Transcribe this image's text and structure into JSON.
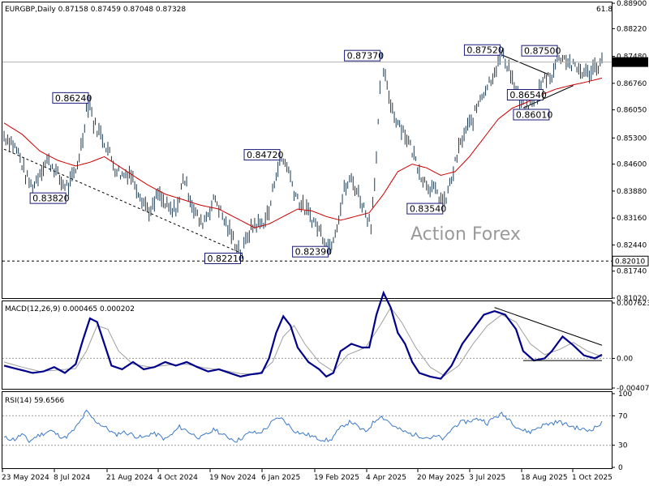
{
  "chart_data": {
    "type": "line",
    "instrument": "EURGBP",
    "timeframe": "Daily",
    "ohlc": [
      "0.87158",
      "0.87459",
      "0.87048",
      "0.87328"
    ],
    "last_price": "0.87328",
    "corner_value": "61.8",
    "watermark": "Action Forex",
    "x_labels": [
      "23 May 2024",
      "8 Jul 2024",
      "21 Aug 2024",
      "4 Oct 2024",
      "19 Nov 2024",
      "6 Jan 2025",
      "19 Feb 2025",
      "4 Apr 2025",
      "20 May 2025",
      "3 Jul 2025",
      "18 Aug 2025",
      "1 Oct 2025"
    ],
    "price_axis": {
      "ticks": [
        "0.88900",
        "0.88220",
        "0.87480",
        "0.86760",
        "0.86050",
        "0.85300",
        "0.84600",
        "0.83880",
        "0.83160",
        "0.82440",
        "0.81740",
        "0.81020"
      ],
      "range": [
        0.8102,
        0.889
      ]
    },
    "support_level": "0.82010",
    "annotations": [
      {
        "label": "0.86240",
        "value": 0.8624
      },
      {
        "label": "0.83820",
        "value": 0.8382
      },
      {
        "label": "0.84720",
        "value": 0.8472
      },
      {
        "label": "0.82210",
        "value": 0.8221
      },
      {
        "label": "0.82390",
        "value": 0.8239
      },
      {
        "label": "0.87370",
        "value": 0.8737
      },
      {
        "label": "0.83540",
        "value": 0.8354
      },
      {
        "label": "0.87520",
        "value": 0.8752
      },
      {
        "label": "0.87500",
        "value": 0.875
      },
      {
        "label": "0.86010",
        "value": 0.8601
      },
      {
        "label": "0.86540",
        "value": 0.8654
      }
    ],
    "price_path": [
      [
        0,
        0.8535
      ],
      [
        4,
        0.852
      ],
      [
        8,
        0.849
      ],
      [
        12,
        0.843
      ],
      [
        16,
        0.8395
      ],
      [
        20,
        0.844
      ],
      [
        24,
        0.847
      ],
      [
        28,
        0.845
      ],
      [
        32,
        0.841
      ],
      [
        36,
        0.84
      ],
      [
        40,
        0.844
      ],
      [
        44,
        0.853
      ],
      [
        46,
        0.861
      ],
      [
        48,
        0.8624
      ],
      [
        50,
        0.857
      ],
      [
        54,
        0.854
      ],
      [
        58,
        0.85
      ],
      [
        62,
        0.845
      ],
      [
        66,
        0.843
      ],
      [
        70,
        0.844
      ],
      [
        74,
        0.84
      ],
      [
        78,
        0.836
      ],
      [
        82,
        0.833
      ],
      [
        86,
        0.838
      ],
      [
        90,
        0.835
      ],
      [
        94,
        0.833
      ],
      [
        98,
        0.836
      ],
      [
        100,
        0.843
      ],
      [
        102,
        0.84
      ],
      [
        106,
        0.834
      ],
      [
        110,
        0.83
      ],
      [
        114,
        0.833
      ],
      [
        118,
        0.837
      ],
      [
        122,
        0.832
      ],
      [
        126,
        0.828
      ],
      [
        130,
        0.824
      ],
      [
        133,
        0.8221
      ],
      [
        136,
        0.827
      ],
      [
        140,
        0.83
      ],
      [
        144,
        0.83
      ],
      [
        148,
        0.833
      ],
      [
        152,
        0.844
      ],
      [
        155,
        0.8472
      ],
      [
        158,
        0.846
      ],
      [
        162,
        0.839
      ],
      [
        166,
        0.835
      ],
      [
        170,
        0.833
      ],
      [
        174,
        0.83
      ],
      [
        178,
        0.827
      ],
      [
        182,
        0.8239
      ],
      [
        186,
        0.83
      ],
      [
        190,
        0.839
      ],
      [
        194,
        0.842
      ],
      [
        198,
        0.838
      ],
      [
        202,
        0.833
      ],
      [
        205,
        0.83
      ],
      [
        208,
        0.848
      ],
      [
        211,
        0.8737
      ],
      [
        214,
        0.866
      ],
      [
        218,
        0.859
      ],
      [
        222,
        0.856
      ],
      [
        226,
        0.852
      ],
      [
        230,
        0.847
      ],
      [
        234,
        0.842
      ],
      [
        238,
        0.84
      ],
      [
        242,
        0.838
      ],
      [
        246,
        0.8354
      ],
      [
        250,
        0.842
      ],
      [
        254,
        0.85
      ],
      [
        258,
        0.855
      ],
      [
        262,
        0.858
      ],
      [
        266,
        0.864
      ],
      [
        270,
        0.867
      ],
      [
        274,
        0.871
      ],
      [
        278,
        0.8752
      ],
      [
        282,
        0.872
      ],
      [
        286,
        0.865
      ],
      [
        290,
        0.861
      ],
      [
        294,
        0.862
      ],
      [
        298,
        0.865
      ],
      [
        302,
        0.869
      ],
      [
        306,
        0.87
      ],
      [
        310,
        0.875
      ],
      [
        314,
        0.874
      ],
      [
        318,
        0.872
      ],
      [
        322,
        0.871
      ],
      [
        326,
        0.87
      ],
      [
        330,
        0.872
      ],
      [
        334,
        0.8733
      ]
    ],
    "ma_path": [
      [
        0,
        0.857
      ],
      [
        10,
        0.854
      ],
      [
        20,
        0.8495
      ],
      [
        30,
        0.847
      ],
      [
        40,
        0.8455
      ],
      [
        48,
        0.8465
      ],
      [
        56,
        0.848
      ],
      [
        64,
        0.8455
      ],
      [
        72,
        0.843
      ],
      [
        80,
        0.8405
      ],
      [
        90,
        0.838
      ],
      [
        100,
        0.8365
      ],
      [
        110,
        0.835
      ],
      [
        120,
        0.834
      ],
      [
        130,
        0.8315
      ],
      [
        140,
        0.829
      ],
      [
        148,
        0.83
      ],
      [
        156,
        0.832
      ],
      [
        164,
        0.834
      ],
      [
        172,
        0.8335
      ],
      [
        180,
        0.832
      ],
      [
        188,
        0.831
      ],
      [
        196,
        0.832
      ],
      [
        204,
        0.833
      ],
      [
        212,
        0.838
      ],
      [
        220,
        0.844
      ],
      [
        228,
        0.846
      ],
      [
        236,
        0.845
      ],
      [
        244,
        0.843
      ],
      [
        252,
        0.844
      ],
      [
        260,
        0.848
      ],
      [
        268,
        0.853
      ],
      [
        276,
        0.858
      ],
      [
        284,
        0.861
      ],
      [
        292,
        0.8625
      ],
      [
        300,
        0.8645
      ],
      [
        308,
        0.866
      ],
      [
        316,
        0.867
      ],
      [
        324,
        0.8678
      ],
      [
        334,
        0.869
      ]
    ],
    "macd": {
      "label": "MACD(12,26,9) 0.000465 0.000202",
      "ticks": [
        "0.007623",
        "0.00",
        "-0.004073"
      ],
      "range": [
        -0.004073,
        0.007623
      ],
      "main": [
        [
          0,
          -0.001
        ],
        [
          8,
          -0.0015
        ],
        [
          16,
          -0.002
        ],
        [
          22,
          -0.0018
        ],
        [
          28,
          -0.0012
        ],
        [
          34,
          -0.002
        ],
        [
          40,
          -0.0008
        ],
        [
          44,
          0.0025
        ],
        [
          48,
          0.0055
        ],
        [
          52,
          0.005
        ],
        [
          56,
          0.002
        ],
        [
          60,
          -0.001
        ],
        [
          66,
          -0.0015
        ],
        [
          72,
          -0.0005
        ],
        [
          78,
          -0.0015
        ],
        [
          84,
          -0.0012
        ],
        [
          90,
          -0.0005
        ],
        [
          96,
          -0.001
        ],
        [
          102,
          -0.0005
        ],
        [
          108,
          -0.0012
        ],
        [
          114,
          -0.0018
        ],
        [
          120,
          -0.0015
        ],
        [
          126,
          -0.002
        ],
        [
          132,
          -0.0025
        ],
        [
          138,
          -0.0022
        ],
        [
          144,
          -0.002
        ],
        [
          148,
          0.0
        ],
        [
          152,
          0.0035
        ],
        [
          156,
          0.0058
        ],
        [
          160,
          0.0045
        ],
        [
          164,
          0.0015
        ],
        [
          170,
          -0.0005
        ],
        [
          176,
          -0.0015
        ],
        [
          180,
          -0.0025
        ],
        [
          184,
          -0.002
        ],
        [
          188,
          0.001
        ],
        [
          194,
          0.002
        ],
        [
          200,
          0.0015
        ],
        [
          204,
          0.0015
        ],
        [
          208,
          0.006
        ],
        [
          212,
          0.009
        ],
        [
          216,
          0.007
        ],
        [
          220,
          0.0035
        ],
        [
          224,
          0.002
        ],
        [
          228,
          -0.0005
        ],
        [
          232,
          -0.002
        ],
        [
          238,
          -0.0025
        ],
        [
          244,
          -0.0028
        ],
        [
          250,
          -0.001
        ],
        [
          256,
          0.002
        ],
        [
          262,
          0.004
        ],
        [
          268,
          0.006
        ],
        [
          274,
          0.0065
        ],
        [
          280,
          0.006
        ],
        [
          286,
          0.004
        ],
        [
          290,
          0.001
        ],
        [
          296,
          -0.0003
        ],
        [
          302,
          0.0
        ],
        [
          306,
          0.001
        ],
        [
          312,
          0.003
        ],
        [
          318,
          0.0018
        ],
        [
          324,
          0.0004
        ],
        [
          330,
          0.0
        ],
        [
          334,
          0.0005
        ]
      ],
      "signal": [
        [
          0,
          -0.0005
        ],
        [
          10,
          -0.0012
        ],
        [
          20,
          -0.0018
        ],
        [
          30,
          -0.0016
        ],
        [
          40,
          -0.0014
        ],
        [
          46,
          0.001
        ],
        [
          52,
          0.0045
        ],
        [
          58,
          0.004
        ],
        [
          64,
          0.001
        ],
        [
          72,
          -0.0008
        ],
        [
          82,
          -0.0012
        ],
        [
          92,
          -0.0009
        ],
        [
          102,
          -0.0008
        ],
        [
          112,
          -0.0013
        ],
        [
          122,
          -0.0016
        ],
        [
          132,
          -0.0021
        ],
        [
          142,
          -0.0022
        ],
        [
          150,
          -0.0005
        ],
        [
          156,
          0.003
        ],
        [
          162,
          0.0045
        ],
        [
          168,
          0.002
        ],
        [
          176,
          -0.0005
        ],
        [
          184,
          -0.0018
        ],
        [
          192,
          0.0005
        ],
        [
          202,
          0.0015
        ],
        [
          210,
          0.0045
        ],
        [
          216,
          0.007
        ],
        [
          222,
          0.005
        ],
        [
          230,
          0.0015
        ],
        [
          238,
          -0.0012
        ],
        [
          246,
          -0.0024
        ],
        [
          254,
          -0.001
        ],
        [
          262,
          0.002
        ],
        [
          270,
          0.0045
        ],
        [
          278,
          0.006
        ],
        [
          286,
          0.005
        ],
        [
          294,
          0.002
        ],
        [
          302,
          0.0005
        ],
        [
          310,
          0.0012
        ],
        [
          318,
          0.0022
        ],
        [
          326,
          0.001
        ],
        [
          334,
          0.0002
        ]
      ]
    },
    "rsi": {
      "label": "RSI(14) 59.6566",
      "ticks": [
        "100",
        "70",
        "30",
        "0"
      ],
      "range": [
        0,
        100
      ],
      "levels": [
        70,
        30
      ],
      "values": [
        [
          0,
          40
        ],
        [
          6,
          38
        ],
        [
          10,
          45
        ],
        [
          14,
          35
        ],
        [
          18,
          42
        ],
        [
          22,
          46
        ],
        [
          26,
          50
        ],
        [
          30,
          44
        ],
        [
          34,
          40
        ],
        [
          38,
          48
        ],
        [
          42,
          60
        ],
        [
          46,
          76
        ],
        [
          50,
          65
        ],
        [
          54,
          58
        ],
        [
          58,
          52
        ],
        [
          62,
          44
        ],
        [
          66,
          48
        ],
        [
          70,
          46
        ],
        [
          74,
          42
        ],
        [
          78,
          40
        ],
        [
          82,
          46
        ],
        [
          86,
          44
        ],
        [
          90,
          38
        ],
        [
          94,
          45
        ],
        [
          98,
          55
        ],
        [
          102,
          50
        ],
        [
          106,
          44
        ],
        [
          110,
          40
        ],
        [
          114,
          46
        ],
        [
          118,
          52
        ],
        [
          122,
          44
        ],
        [
          126,
          40
        ],
        [
          130,
          36
        ],
        [
          134,
          42
        ],
        [
          138,
          48
        ],
        [
          142,
          46
        ],
        [
          146,
          52
        ],
        [
          150,
          62
        ],
        [
          154,
          68
        ],
        [
          158,
          60
        ],
        [
          162,
          50
        ],
        [
          166,
          46
        ],
        [
          170,
          44
        ],
        [
          174,
          40
        ],
        [
          178,
          38
        ],
        [
          182,
          36
        ],
        [
          186,
          48
        ],
        [
          190,
          58
        ],
        [
          194,
          62
        ],
        [
          198,
          54
        ],
        [
          202,
          48
        ],
        [
          206,
          60
        ],
        [
          210,
          70
        ],
        [
          214,
          64
        ],
        [
          218,
          55
        ],
        [
          222,
          50
        ],
        [
          226,
          46
        ],
        [
          230,
          44
        ],
        [
          234,
          42
        ],
        [
          238,
          40
        ],
        [
          242,
          42
        ],
        [
          246,
          38
        ],
        [
          250,
          52
        ],
        [
          254,
          60
        ],
        [
          258,
          62
        ],
        [
          262,
          64
        ],
        [
          266,
          66
        ],
        [
          270,
          60
        ],
        [
          274,
          68
        ],
        [
          278,
          72
        ],
        [
          282,
          66
        ],
        [
          286,
          56
        ],
        [
          290,
          50
        ],
        [
          294,
          48
        ],
        [
          298,
          54
        ],
        [
          302,
          58
        ],
        [
          306,
          60
        ],
        [
          310,
          62
        ],
        [
          314,
          58
        ],
        [
          318,
          55
        ],
        [
          322,
          52
        ],
        [
          326,
          50
        ],
        [
          330,
          54
        ],
        [
          334,
          60
        ]
      ]
    }
  }
}
